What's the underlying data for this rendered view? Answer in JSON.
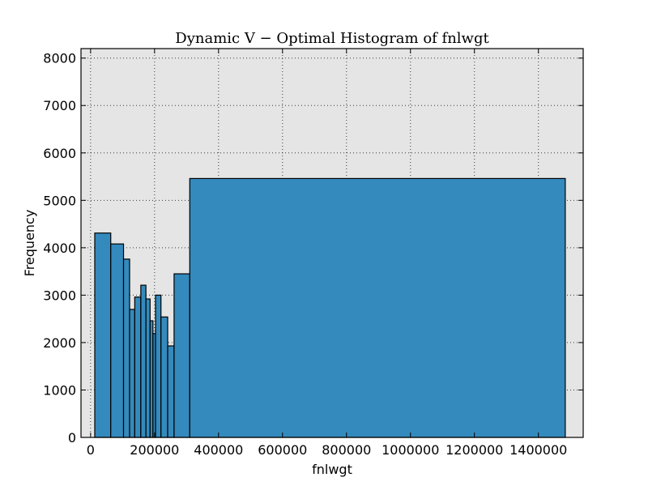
{
  "chart_data": {
    "type": "bar",
    "title": "Dynamic V − Optimal Histogram of fnlwgt",
    "xlabel": "fnlwgt",
    "ylabel": "Frequency",
    "xlim": [
      -30000,
      1540000
    ],
    "ylim": [
      0,
      8200
    ],
    "xticks": [
      0,
      200000,
      400000,
      600000,
      800000,
      1000000,
      1200000,
      1400000
    ],
    "yticks": [
      0,
      1000,
      2000,
      3000,
      4000,
      5000,
      6000,
      7000,
      8000
    ],
    "grid": true,
    "bins": [
      {
        "start": 13000,
        "end": 63000,
        "value": 4310
      },
      {
        "start": 63000,
        "end": 103000,
        "value": 4080
      },
      {
        "start": 103000,
        "end": 122000,
        "value": 3760
      },
      {
        "start": 122000,
        "end": 138000,
        "value": 2700
      },
      {
        "start": 138000,
        "end": 157000,
        "value": 2960
      },
      {
        "start": 157000,
        "end": 173000,
        "value": 3210
      },
      {
        "start": 173000,
        "end": 186000,
        "value": 2920
      },
      {
        "start": 186000,
        "end": 195000,
        "value": 2460
      },
      {
        "start": 195000,
        "end": 203000,
        "value": 2190
      },
      {
        "start": 203000,
        "end": 220000,
        "value": 3000
      },
      {
        "start": 220000,
        "end": 241000,
        "value": 2540
      },
      {
        "start": 241000,
        "end": 261000,
        "value": 1930
      },
      {
        "start": 261000,
        "end": 310000,
        "value": 3450
      },
      {
        "start": 310000,
        "end": 1484000,
        "value": 5460
      }
    ]
  },
  "colors": {
    "bar_fill": "#348ABD",
    "plot_background": "#E5E5E5"
  }
}
